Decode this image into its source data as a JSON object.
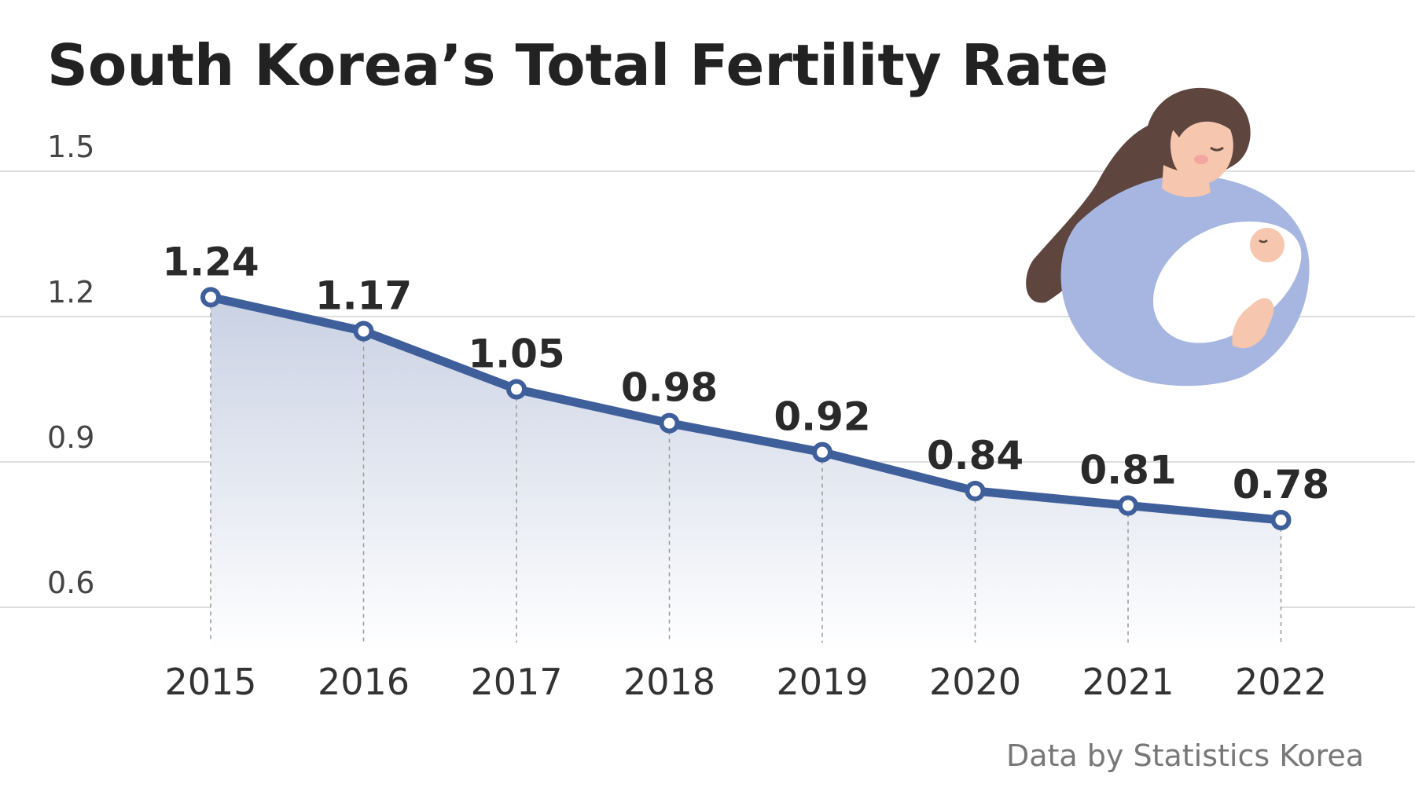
{
  "title": "South Korea’s Total Fertility Rate",
  "source": "Data by Statistics Korea",
  "colors": {
    "line": "#3f5f9b",
    "fill_top": "#c9d1e3",
    "fill_bottom": "#ffffff",
    "grid": "#dddddd",
    "text": "#222222",
    "illustration_body": "#a7b6e0",
    "illustration_hair": "#5e463f",
    "illustration_skin": "#f6c6ae",
    "illustration_blanket": "#ffffff"
  },
  "illustration": {
    "name": "mother-holding-baby-illustration"
  },
  "chart_data": {
    "type": "area",
    "title": "South Korea’s Total Fertility Rate",
    "categories": [
      "2015",
      "2016",
      "2017",
      "2018",
      "2019",
      "2020",
      "2021",
      "2022"
    ],
    "series": [
      {
        "values": [
          1.24,
          1.17,
          1.05,
          0.98,
          0.92,
          0.84,
          0.81,
          0.78
        ]
      }
    ],
    "data_labels": [
      "1.24",
      "1.17",
      "1.05",
      "0.98",
      "0.92",
      "0.84",
      "0.81",
      "0.78"
    ],
    "yticks": [
      "0.6",
      "0.9",
      "1.2",
      "1.5"
    ],
    "ytick_values": [
      0.6,
      0.9,
      1.2,
      1.5
    ],
    "ylim": [
      0.6,
      1.5
    ],
    "xlabel": "",
    "ylabel": "",
    "grid": true,
    "legend": "none"
  }
}
